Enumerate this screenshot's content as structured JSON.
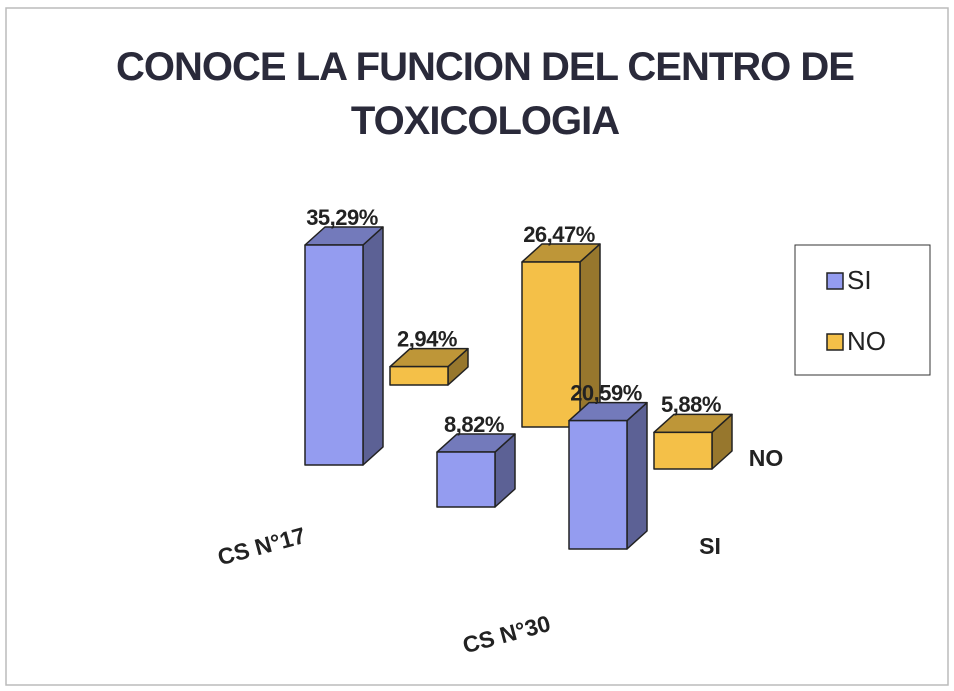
{
  "chart_data": {
    "type": "bar3d",
    "title": "CONOCE LA FUNCION DEL CENTRO DE TOXICOLOGIA",
    "categories": [
      "CS N°17",
      "CS N°30",
      null
    ],
    "series": [
      {
        "name": "SI",
        "color": "#949cf0",
        "values": [
          35.29,
          8.82,
          20.59
        ],
        "value_labels": [
          "35,29%",
          "8,82%",
          "20,59%"
        ]
      },
      {
        "name": "NO",
        "color": "#f4c048",
        "values": [
          2.94,
          26.47,
          5.88
        ],
        "value_labels": [
          "2,94%",
          "26,47%",
          "5,88%"
        ]
      }
    ],
    "legend": "right"
  }
}
